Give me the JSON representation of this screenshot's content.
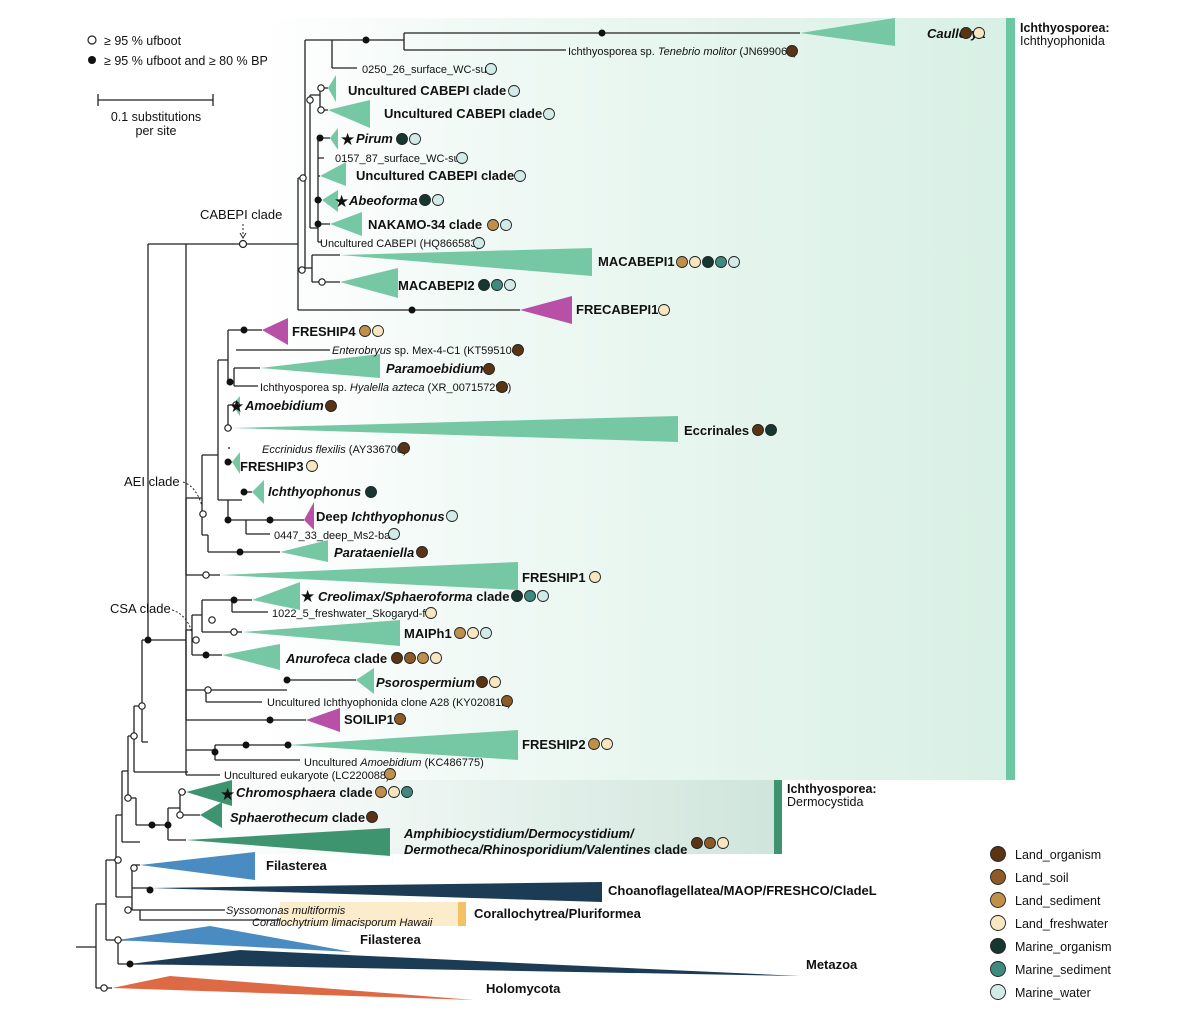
{
  "legend_support": {
    "open": "≥ 95 % ufboot",
    "filled": "≥ 95 % ufboot and ≥ 80 % BP"
  },
  "scale_bar": {
    "line1": "0.1 substitutions",
    "line2": "per site"
  },
  "group_labels": {
    "ichthyophonida_top": "Ichthyosporea:",
    "ichthyophonida_sub": "Ichthyophonida",
    "dermocystida_top": "Ichthyosporea:",
    "dermocystida_sub": "Dermocystida"
  },
  "node_labels": {
    "cabepi": "CABEPI clade",
    "aei": "AEI clade",
    "csa": "CSA clade"
  },
  "habitat_legend": [
    {
      "name": "Land_organism",
      "color": "#5a3413"
    },
    {
      "name": "Land_soil",
      "color": "#8e5a26"
    },
    {
      "name": "Land_sediment",
      "color": "#c0904a"
    },
    {
      "name": "Land_freshwater",
      "color": "#f7e6bf"
    },
    {
      "name": "Marine_organism",
      "color": "#16372f"
    },
    {
      "name": "Marine_sediment",
      "color": "#3f8a7e"
    },
    {
      "name": "Marine_water",
      "color": "#d3ebe8"
    }
  ],
  "colors": {
    "ichthyophonida_clade": "#76c8a5",
    "freshwater_clade": "#b850a8",
    "dermocystida_clade": "#3f9470",
    "filasterea": "#4a8cc1",
    "choano": "#1c3b55",
    "holomycota": "#de6a45",
    "corallo_bar": "#f2c265",
    "ichthyophonida_band": "#6cc7a3",
    "dermocystida_band": "#3f9470"
  },
  "taxa": {
    "caullerya": "Caullerya",
    "tenebrio_prefix": "Ichthyosporea sp. ",
    "tenebrio_ital": "Tenebrio molitor",
    "tenebrio_suffix": " (JN699060)",
    "s0250": "0250_26_surface_WC-sur",
    "uncab1": "Uncultured CABEPI clade",
    "uncab2": "Uncultured CABEPI clade",
    "pirum": "Pirum",
    "s0157": "0157_87_surface_WC-sur",
    "uncab3": "Uncultured CABEPI clade",
    "abeoforma": "Abeoforma",
    "nakamo": "NAKAMO-34 clade",
    "uncab_hq": "Uncultured CABEPI (HQ866583)",
    "macabepi1": "MACABEPI1",
    "macabepi2": "MACABEPI2",
    "frecabepi1": "FRECABEPI1",
    "freship4": "FRESHIP4",
    "enterobryus_ital": "Enterobryus",
    "enterobryus_suffix": " sp. Mex-4-C1 (KT595104)",
    "paramoebidium": "Paramoebidium",
    "hyalella_prefix": "Ichthyosporea sp. ",
    "hyalella_ital": "Hyalella azteca",
    "hyalella_suffix": " (XR_007157292)",
    "amoebidium": "Amoebidium",
    "eccrinales": "Eccrinales",
    "eccrinidus_ital": "Eccrinidus flexilis",
    "eccrinidus_suffix": " (AY336700)",
    "freship3": "FRESHIP3",
    "ichthyophonus": "Ichthyophonus",
    "deep_prefix": "Deep ",
    "deep_ital": "Ichthyophonus",
    "s0447": "0447_33_deep_Ms2-bat",
    "parataeniella": "Parataeniella",
    "freship1": "FRESHIP1",
    "creolimax": "Creolimax/Sphaeroforma",
    "creolimax_suffix": " clade",
    "s1022": "1022_5_freshwater_Skogaryd-fw",
    "maiph1": "MAIPh1",
    "anurofeca": "Anurofeca",
    "anurofeca_suffix": " clade",
    "psorospermium": "Psorospermium",
    "unc_ich": "Uncultured Ichthyophonida clone A28 (KY020812)",
    "soilip1": "SOILIP1",
    "freship2": "FRESHIP2",
    "unc_amoeb_prefix": "Uncultured ",
    "unc_amoeb_ital": "Amoebidium",
    "unc_amoeb_suffix": " (KC486775)",
    "unc_euk": "Uncultured eukaryote (LC220088)",
    "chromosphaera": "Chromosphaera",
    "chromosphaera_suffix": " clade",
    "sphaerothecum": "Sphaerothecum",
    "sphaerothecum_suffix": " clade",
    "amphi1": "Amphibiocystidium/Dermocystidium/",
    "amphi2_ital": "Dermotheca/Rhinosporidium/Valentines",
    "amphi2_suffix": " clade",
    "filasterea1": "Filasterea",
    "choano": "Choanoflagellatea/MAOP/FRESHCO/CladeL",
    "syssomonas": "Syssomonas multiformis",
    "corallochytrium": "Corallochytrium limacisporum Hawaii",
    "corallo_group": "Corallochytrea/Pluriformea",
    "filasterea2": "Filasterea",
    "metazoa": "Metazoa",
    "holomycota": "Holomycota"
  }
}
